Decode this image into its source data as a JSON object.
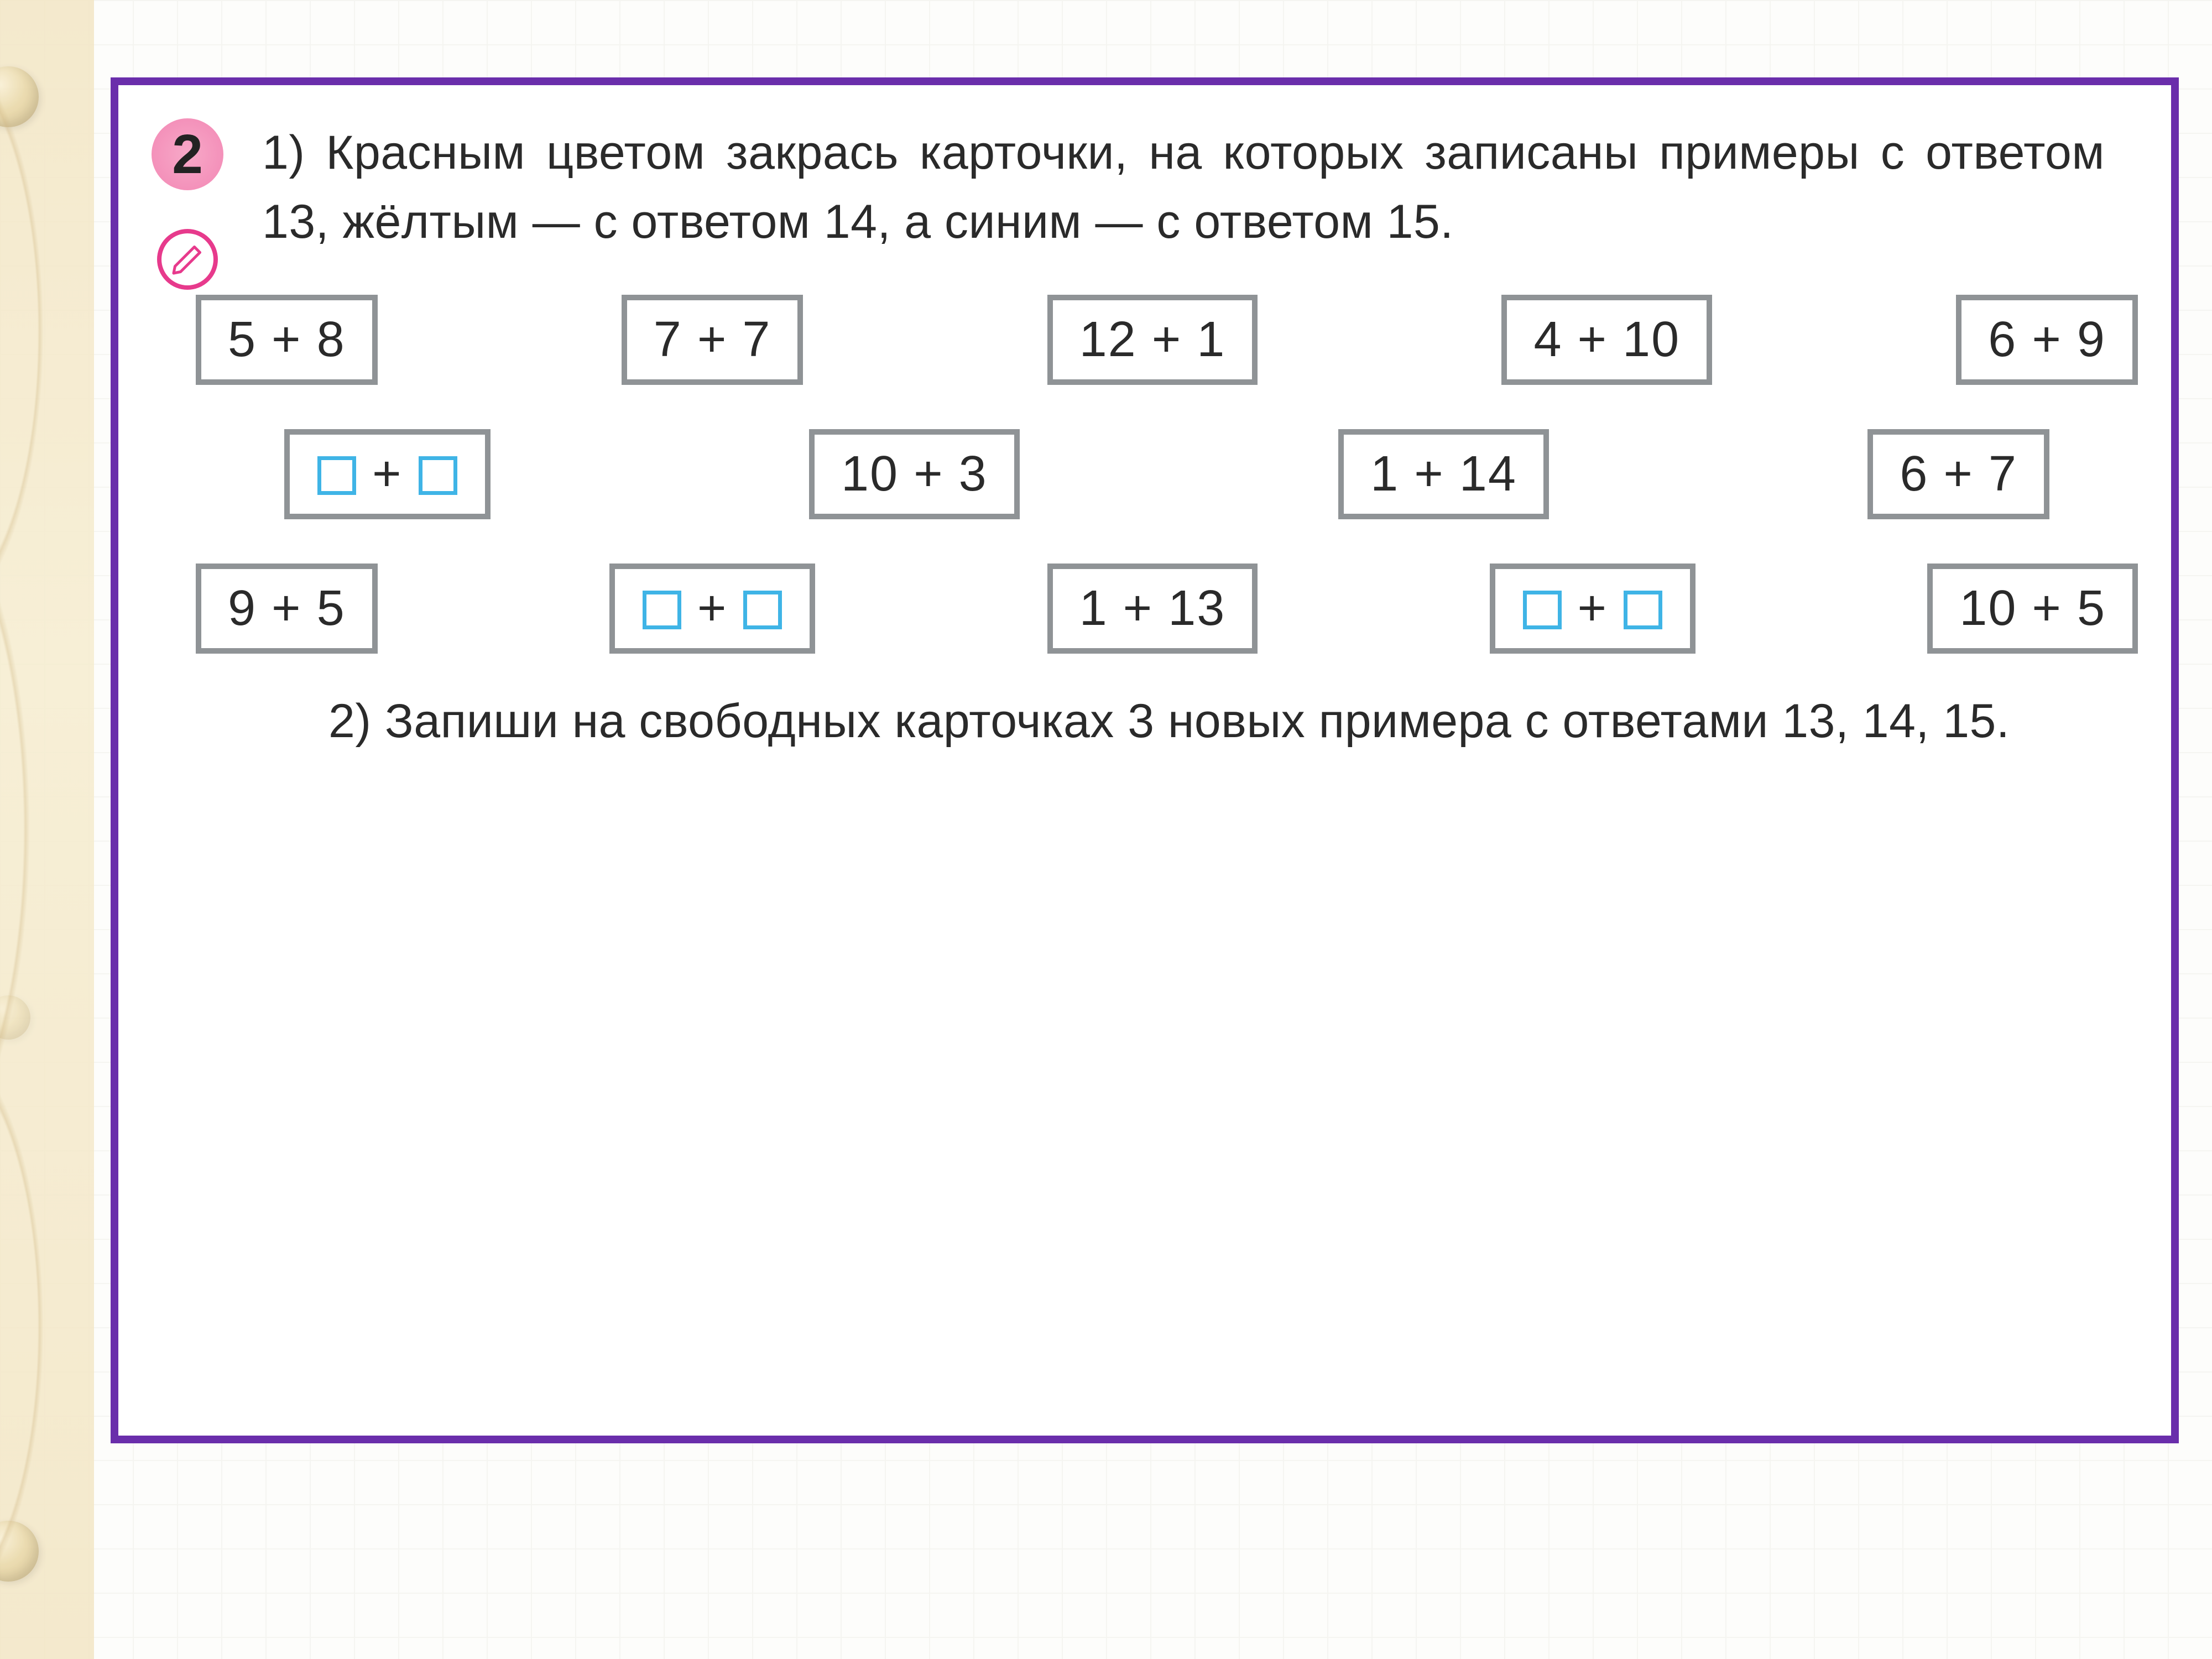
{
  "exercise_number": "2",
  "part1_text": "1) Красным цветом закрась карточки, на ко­торых записаны примеры с ответом 13, жёл­тым — с ответом 14, а синим — с отве­том 15.",
  "part2_text": "2) Запиши на свободных карточках 3 новых примера с ответами 13, 14, 15.",
  "rows": [
    {
      "indent": false,
      "cards": [
        {
          "type": "expr",
          "text": "5 + 8"
        },
        {
          "type": "expr",
          "text": "7 + 7"
        },
        {
          "type": "expr",
          "text": "12 + 1"
        },
        {
          "type": "expr",
          "text": "4 + 10"
        },
        {
          "type": "expr",
          "text": "6 + 9"
        }
      ]
    },
    {
      "indent": true,
      "cards": [
        {
          "type": "blank"
        },
        {
          "type": "expr",
          "text": "10 + 3"
        },
        {
          "type": "expr",
          "text": "1 + 14"
        },
        {
          "type": "expr",
          "text": "6 + 7"
        }
      ]
    },
    {
      "indent": false,
      "cards": [
        {
          "type": "expr",
          "text": "9 + 5"
        },
        {
          "type": "blank"
        },
        {
          "type": "expr",
          "text": "1 + 13"
        },
        {
          "type": "blank"
        },
        {
          "type": "expr",
          "text": "10 + 5"
        }
      ]
    }
  ],
  "colors": {
    "frame_border": "#6a2eab",
    "card_border": "#8f9396",
    "blank_box_border": "#3fb4e6",
    "badge_fill": "#f491ba",
    "pencil_ring": "#e73a8c",
    "text": "#2a2a2a"
  }
}
